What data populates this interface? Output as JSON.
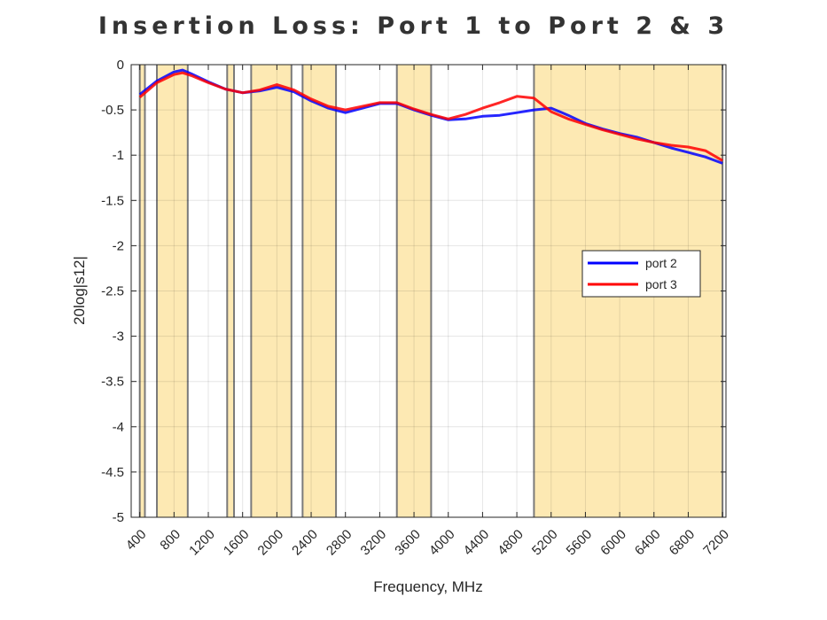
{
  "chart_data": {
    "type": "line",
    "title": "Insertion Loss: Port 1 to Port 2 & 3",
    "xlabel": "Frequency, MHz",
    "ylabel": "20log|s12|",
    "xlim": [
      300,
      7240
    ],
    "ylim": [
      -5,
      0
    ],
    "grid": true,
    "xticks": [
      400,
      800,
      1200,
      1600,
      2000,
      2400,
      2800,
      3200,
      3600,
      4000,
      4400,
      4800,
      5200,
      5600,
      6000,
      6400,
      6800,
      7200
    ],
    "yticks": [
      0,
      -0.5,
      -1,
      -1.5,
      -2,
      -2.5,
      -3,
      -3.5,
      -4,
      -4.5,
      -5
    ],
    "ytick_labels": [
      "0",
      "-0.5",
      "-1",
      "-1.5",
      "-2",
      "-2.5",
      "-3",
      "-3.5",
      "-4",
      "-4.5",
      "-5"
    ],
    "bands": [
      [
        400,
        460
      ],
      [
        600,
        960
      ],
      [
        1420,
        1500
      ],
      [
        1700,
        2170
      ],
      [
        2300,
        2690
      ],
      [
        3400,
        3800
      ],
      [
        5000,
        7200
      ]
    ],
    "band_color": "#fde9b3",
    "legend_position": "right-middle",
    "x": [
      400,
      600,
      800,
      900,
      1000,
      1200,
      1400,
      1600,
      1800,
      2000,
      2200,
      2400,
      2600,
      2800,
      3000,
      3200,
      3400,
      3600,
      3800,
      4000,
      4200,
      4400,
      4600,
      4800,
      5000,
      5200,
      5400,
      5600,
      5800,
      6000,
      6200,
      6400,
      6600,
      6800,
      7000,
      7200
    ],
    "series": [
      {
        "name": "port 2",
        "color": "#0000ff",
        "values": [
          -0.33,
          -0.18,
          -0.08,
          -0.06,
          -0.1,
          -0.19,
          -0.27,
          -0.31,
          -0.29,
          -0.25,
          -0.3,
          -0.4,
          -0.48,
          -0.53,
          -0.48,
          -0.43,
          -0.43,
          -0.5,
          -0.56,
          -0.61,
          -0.6,
          -0.57,
          -0.56,
          -0.53,
          -0.5,
          -0.48,
          -0.56,
          -0.65,
          -0.71,
          -0.76,
          -0.8,
          -0.86,
          -0.92,
          -0.97,
          -1.02,
          -1.09
        ]
      },
      {
        "name": "port 3",
        "color": "#ff0000",
        "values": [
          -0.36,
          -0.2,
          -0.11,
          -0.09,
          -0.12,
          -0.2,
          -0.27,
          -0.31,
          -0.28,
          -0.22,
          -0.28,
          -0.38,
          -0.46,
          -0.5,
          -0.46,
          -0.42,
          -0.42,
          -0.49,
          -0.55,
          -0.6,
          -0.55,
          -0.48,
          -0.42,
          -0.35,
          -0.37,
          -0.52,
          -0.6,
          -0.66,
          -0.72,
          -0.77,
          -0.82,
          -0.86,
          -0.89,
          -0.91,
          -0.95,
          -1.06
        ]
      }
    ]
  }
}
